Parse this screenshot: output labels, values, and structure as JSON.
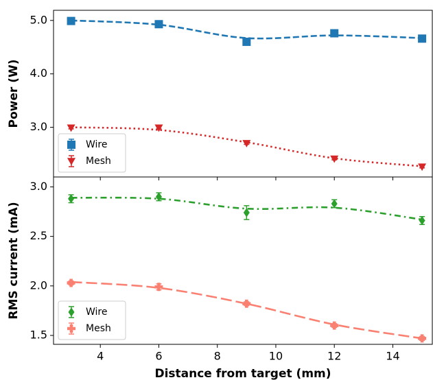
{
  "chart_data": [
    {
      "type": "line",
      "ylabel": "Power (W)",
      "x": [
        3,
        6,
        9,
        12,
        15
      ],
      "xlim": [
        2.4,
        15.35
      ],
      "ylim": [
        2.07,
        5.19
      ],
      "yticks": [
        {
          "value": 3.0,
          "label": "3.0"
        },
        {
          "value": 4.0,
          "label": "4.0"
        },
        {
          "value": 5.0,
          "label": "5.0"
        }
      ],
      "legend": "lower left",
      "series": [
        {
          "name": "Wire",
          "color": "#1f77b4",
          "marker": "square",
          "linestyle": "dashed",
          "values": [
            4.99,
            4.93,
            4.6,
            4.76,
            4.66
          ],
          "errors": [
            0.03,
            0.03,
            0.04,
            0.03,
            0.03
          ],
          "fit": [
            5.0,
            4.92,
            4.67,
            4.72,
            4.67
          ]
        },
        {
          "name": "Mesh",
          "color": "#d62728",
          "marker": "triangle-down",
          "linestyle": "dotted",
          "values": [
            2.99,
            2.99,
            2.7,
            2.41,
            2.26
          ],
          "errors": [
            0.02,
            0.02,
            0.02,
            0.02,
            0.02
          ],
          "fit": [
            3.0,
            2.95,
            2.72,
            2.42,
            2.27
          ]
        }
      ]
    },
    {
      "type": "line",
      "ylabel": "RMS current (mA)",
      "xlabel": "Distance from target (mm)",
      "x": [
        3,
        6,
        9,
        12,
        15
      ],
      "xlim": [
        2.4,
        15.35
      ],
      "xticks": [
        4,
        6,
        8,
        10,
        12,
        14
      ],
      "ylim": [
        1.41,
        3.1
      ],
      "yticks": [
        {
          "value": 1.5,
          "label": "1.5"
        },
        {
          "value": 2.0,
          "label": "2.0"
        },
        {
          "value": 2.5,
          "label": "2.5"
        },
        {
          "value": 3.0,
          "label": "3.0"
        }
      ],
      "legend": "lower left",
      "series": [
        {
          "name": "Wire",
          "color": "#2ca02c",
          "marker": "diamond",
          "linestyle": "dashdot",
          "values": [
            2.88,
            2.9,
            2.74,
            2.83,
            2.66
          ],
          "errors": [
            0.04,
            0.04,
            0.07,
            0.04,
            0.04
          ],
          "fit": [
            2.89,
            2.88,
            2.78,
            2.79,
            2.67
          ]
        },
        {
          "name": "Mesh",
          "color": "#fa8072",
          "marker": "plus",
          "linestyle": "longdash",
          "values": [
            2.03,
            1.99,
            1.82,
            1.6,
            1.47
          ],
          "errors": [
            0.02,
            0.03,
            0.02,
            0.02,
            0.02
          ],
          "fit": [
            2.04,
            1.98,
            1.82,
            1.61,
            1.47
          ]
        }
      ]
    }
  ]
}
